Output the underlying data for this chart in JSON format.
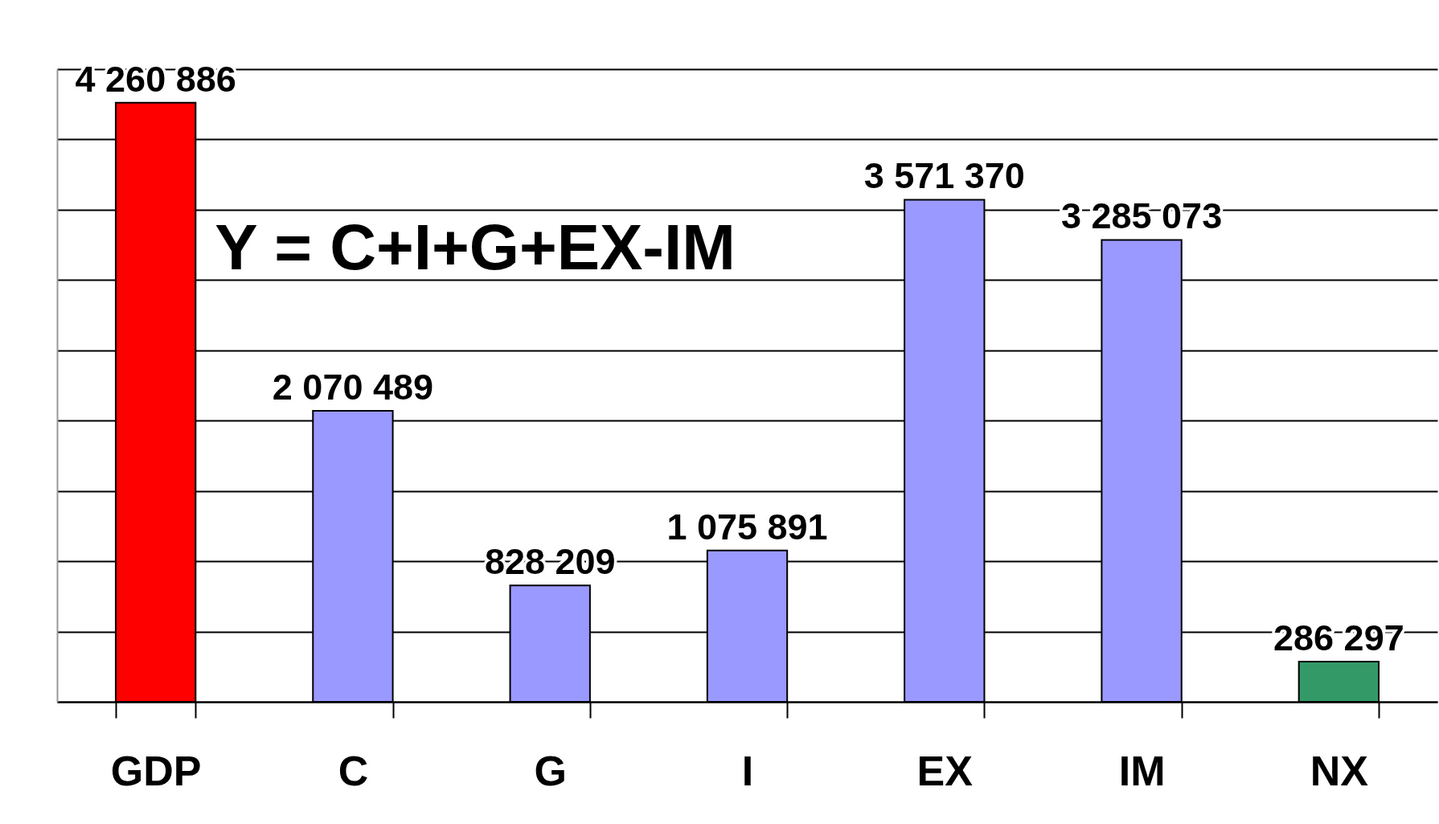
{
  "chart_data": {
    "type": "bar",
    "categories": [
      "GDP",
      "C",
      "G",
      "I",
      "EX",
      "IM",
      "NX"
    ],
    "values": [
      4260886,
      2070489,
      828209,
      1075891,
      3571370,
      3285073,
      286297
    ],
    "colors": [
      "#ff0000",
      "#9999ff",
      "#9999ff",
      "#9999ff",
      "#9999ff",
      "#9999ff",
      "#339966"
    ],
    "value_labels": [
      "4 260 886",
      "2 070 489",
      "828 209",
      "1 075 891",
      "3 571 370",
      "3 285 073",
      "286 297"
    ],
    "ylim": [
      0,
      4500000
    ],
    "yticks": [
      {
        "value": 0,
        "label": null
      },
      {
        "value": 500000,
        "label": null
      },
      {
        "value": 1000000,
        "label": null
      },
      {
        "value": 1500000,
        "label": null
      },
      {
        "value": 2000000,
        "label": null
      },
      {
        "value": 2500000,
        "label": null
      },
      {
        "value": 3000000,
        "label": null
      },
      {
        "value": 3500000,
        "label": null
      },
      {
        "value": 4000000,
        "label": null
      },
      {
        "value": 4500000,
        "label": null
      }
    ],
    "tick_labels": "x",
    "grid": "y",
    "annotations": [
      "Y = C+I+G+EX-IM"
    ]
  }
}
